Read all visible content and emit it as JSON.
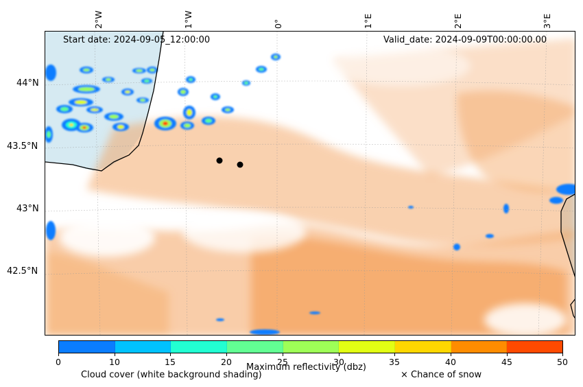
{
  "header": {
    "start_date": "Start date: 2024-09-05_12:00:00",
    "valid_date": "Valid_date: 2024-09-09T00:00:00.00"
  },
  "map": {
    "lon_labels": [
      "2°W",
      "1°W",
      "0°",
      "1°E",
      "2°E",
      "3°E"
    ],
    "lat_labels": [
      "44°N",
      "43.5°N",
      "43°N",
      "42.5°N"
    ],
    "colors": {
      "sea": "#cfe6ef",
      "cloud_shade": "#f4a460",
      "coast": "#000000"
    }
  },
  "colorbar": {
    "ticks": [
      "0",
      "10",
      "15",
      "20",
      "25",
      "30",
      "35",
      "40",
      "45",
      "50"
    ],
    "colors": [
      "#0a7dff",
      "#00c2ff",
      "#22ffd2",
      "#62ff93",
      "#9eff57",
      "#e2ff14",
      "#ffd700",
      "#ff8c00",
      "#ff4a00"
    ],
    "label": "Maximum reflectivity (dbz)"
  },
  "footer": {
    "cloud_cover": "Cloud cover (white background shading)",
    "snow": "× Chance of snow"
  }
}
